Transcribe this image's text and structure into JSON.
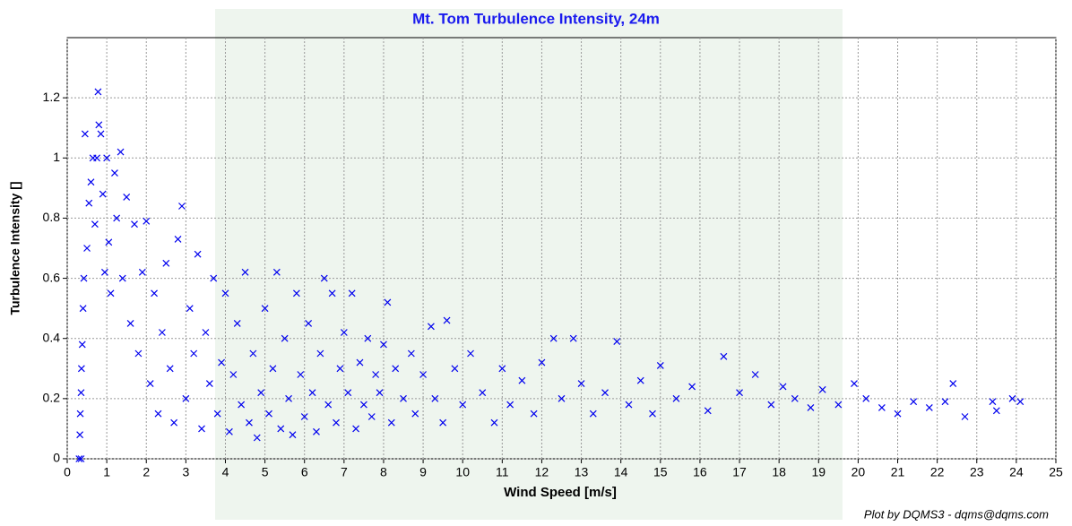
{
  "chart_data": {
    "type": "scatter",
    "title": "Mt. Tom Turbulence Intensity, 24m",
    "x_label": "Wind Speed [m/s]",
    "y_label": "Turbulence Intensity []",
    "footer": "Plot by DQMS3 - dqms@dqms.com",
    "color": "#0000ee",
    "marker": "x",
    "grid": true,
    "xlim": [
      0,
      25
    ],
    "ylim": [
      0,
      1.4
    ],
    "xticks": [
      0,
      1,
      2,
      3,
      4,
      5,
      6,
      7,
      8,
      9,
      10,
      11,
      12,
      13,
      14,
      15,
      16,
      17,
      18,
      19,
      20,
      21,
      22,
      23,
      24,
      25
    ],
    "yticks": [
      0,
      0.2,
      0.4,
      0.6,
      0.8,
      1,
      1.2
    ],
    "x": [
      0.3,
      0.35,
      0.32,
      0.33,
      0.35,
      0.36,
      0.38,
      0.4,
      0.42,
      0.45,
      0.5,
      0.55,
      0.6,
      0.65,
      0.7,
      0.75,
      0.78,
      0.8,
      0.85,
      0.9,
      0.95,
      1.0,
      1.05,
      1.1,
      1.2,
      1.25,
      1.35,
      1.4,
      1.5,
      1.6,
      1.7,
      1.8,
      1.9,
      2.0,
      2.1,
      2.2,
      2.3,
      2.4,
      2.5,
      2.6,
      2.7,
      2.8,
      2.9,
      3.0,
      3.1,
      3.2,
      3.3,
      3.4,
      3.5,
      3.6,
      3.7,
      3.8,
      3.9,
      4.0,
      4.1,
      4.2,
      4.3,
      4.4,
      4.5,
      4.6,
      4.7,
      4.8,
      4.9,
      5.0,
      5.1,
      5.2,
      5.3,
      5.4,
      5.5,
      5.6,
      5.7,
      5.8,
      5.9,
      6.0,
      6.1,
      6.2,
      6.3,
      6.4,
      6.5,
      6.6,
      6.7,
      6.8,
      6.9,
      7.0,
      7.1,
      7.2,
      7.3,
      7.4,
      7.5,
      7.6,
      7.7,
      7.8,
      7.9,
      8.0,
      8.1,
      8.2,
      8.3,
      8.5,
      8.7,
      8.8,
      9.0,
      9.2,
      9.3,
      9.5,
      9.6,
      9.8,
      10.0,
      10.2,
      10.5,
      10.8,
      11.0,
      11.2,
      11.5,
      11.8,
      12.0,
      12.3,
      12.5,
      12.8,
      13.0,
      13.3,
      13.6,
      13.9,
      14.2,
      14.5,
      14.8,
      15.0,
      15.4,
      15.8,
      16.2,
      16.6,
      17.0,
      17.4,
      17.8,
      18.1,
      18.4,
      18.8,
      19.1,
      19.5,
      19.9,
      20.2,
      20.6,
      21.0,
      21.4,
      21.8,
      22.2,
      22.4,
      22.7,
      23.4,
      23.5,
      23.9,
      24.1
    ],
    "y": [
      0.0,
      0.0,
      0.08,
      0.15,
      0.22,
      0.3,
      0.38,
      0.5,
      0.6,
      1.08,
      0.7,
      0.85,
      0.92,
      1.0,
      0.78,
      1.0,
      1.22,
      1.11,
      1.08,
      0.88,
      0.62,
      1.0,
      0.72,
      0.55,
      0.95,
      0.8,
      1.02,
      0.6,
      0.87,
      0.45,
      0.78,
      0.35,
      0.62,
      0.79,
      0.25,
      0.55,
      0.15,
      0.42,
      0.65,
      0.3,
      0.12,
      0.73,
      0.84,
      0.2,
      0.5,
      0.35,
      0.68,
      0.1,
      0.42,
      0.25,
      0.6,
      0.15,
      0.32,
      0.55,
      0.09,
      0.28,
      0.45,
      0.18,
      0.62,
      0.12,
      0.35,
      0.07,
      0.22,
      0.5,
      0.15,
      0.3,
      0.62,
      0.1,
      0.4,
      0.2,
      0.08,
      0.55,
      0.28,
      0.14,
      0.45,
      0.22,
      0.09,
      0.35,
      0.6,
      0.18,
      0.55,
      0.12,
      0.3,
      0.42,
      0.22,
      0.55,
      0.1,
      0.32,
      0.18,
      0.4,
      0.14,
      0.28,
      0.22,
      0.38,
      0.52,
      0.12,
      0.3,
      0.2,
      0.35,
      0.15,
      0.28,
      0.44,
      0.2,
      0.12,
      0.46,
      0.3,
      0.18,
      0.35,
      0.22,
      0.12,
      0.3,
      0.18,
      0.26,
      0.15,
      0.32,
      0.4,
      0.2,
      0.4,
      0.25,
      0.15,
      0.22,
      0.39,
      0.18,
      0.26,
      0.15,
      0.31,
      0.2,
      0.24,
      0.16,
      0.34,
      0.22,
      0.28,
      0.18,
      0.24,
      0.2,
      0.17,
      0.23,
      0.18,
      0.25,
      0.2,
      0.17,
      0.15,
      0.19,
      0.17,
      0.19,
      0.25,
      0.14,
      0.19,
      0.16,
      0.2,
      0.19
    ]
  }
}
